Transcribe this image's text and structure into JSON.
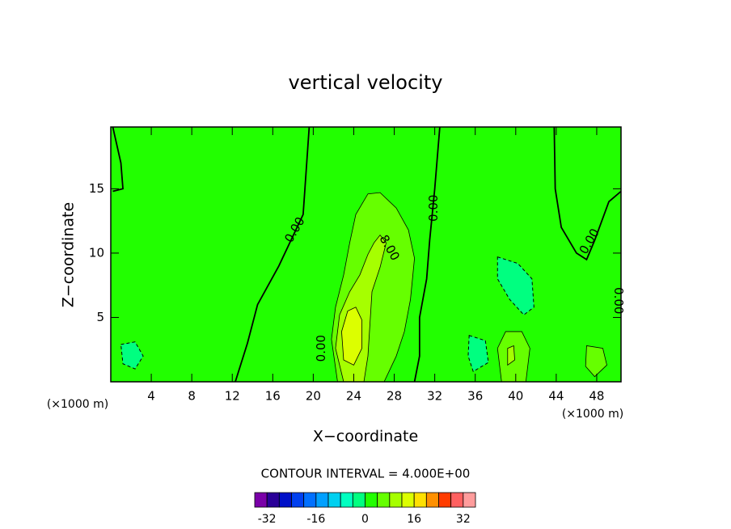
{
  "chart_data": {
    "type": "contour",
    "title": "vertical velocity",
    "xlabel": "X−coordinate",
    "ylabel": "Z−coordinate",
    "x_unit": "(×1000 m)",
    "note": "CONTOUR INTERVAL = 4.000E+00",
    "xlim": [
      0,
      50.4
    ],
    "ylim": [
      0,
      19.8
    ],
    "xticks": [
      4,
      8,
      12,
      16,
      20,
      24,
      28,
      32,
      36,
      40,
      44,
      48
    ],
    "yticks": [
      5,
      10,
      15
    ],
    "background_level": 0,
    "clim": [
      -36,
      36
    ],
    "colors": [
      "#7a00a8",
      "#2a0098",
      "#0010c8",
      "#0040f0",
      "#0070ff",
      "#00a0ff",
      "#00d0f0",
      "#00ffc0",
      "#00ff80",
      "#22ff00",
      "#66ff00",
      "#a6ff00",
      "#dcff00",
      "#ffe000",
      "#ff9000",
      "#ff3c00",
      "#ff6060",
      "#ff9c9c"
    ],
    "cticks": [
      -32,
      -16,
      0,
      16,
      32
    ],
    "regions": [
      {
        "level": 4,
        "x": [
          22.4,
          21.8,
          22.2,
          23.0,
          23.6,
          24.2,
          25.4,
          26.6,
          28.2,
          29.4,
          30.0,
          29.6,
          29.0,
          28.2,
          27.0
        ],
        "z": [
          0,
          3.3,
          5.8,
          8.3,
          10.8,
          13.0,
          14.6,
          14.7,
          13.5,
          11.8,
          9.6,
          6.4,
          3.9,
          2.0,
          0
        ]
      },
      {
        "level": 8,
        "x": [
          23.0,
          22.2,
          22.6,
          23.6,
          24.6,
          25.4,
          26.0,
          26.6,
          27.2,
          26.6,
          25.8,
          25.6,
          25.4,
          25.0
        ],
        "z": [
          0,
          2.6,
          5.2,
          7.0,
          8.3,
          9.9,
          10.8,
          11.4,
          10.8,
          8.9,
          7.0,
          4.5,
          2.0,
          0
        ]
      },
      {
        "level": 12,
        "x": [
          23.0,
          22.8,
          23.4,
          24.2,
          24.8,
          24.8,
          24.0
        ],
        "z": [
          1.7,
          3.9,
          5.5,
          5.8,
          4.8,
          2.6,
          1.3
        ]
      },
      {
        "level": -4,
        "x": [
          38.2,
          40.2,
          41.6,
          41.8,
          40.8,
          39.4,
          38.2
        ],
        "z": [
          9.7,
          9.2,
          8.0,
          5.8,
          5.2,
          6.4,
          8.0
        ]
      },
      {
        "level": -4,
        "x": [
          1.0,
          2.4,
          3.2,
          2.4,
          1.2
        ],
        "z": [
          2.9,
          3.1,
          2.0,
          1.0,
          1.4
        ]
      },
      {
        "level": -4,
        "x": [
          35.4,
          37.0,
          37.3,
          35.8,
          35.3
        ],
        "z": [
          3.6,
          3.2,
          1.5,
          0.8,
          2.0
        ]
      },
      {
        "level": 4,
        "x": [
          38.6,
          38.2,
          39.0,
          40.6,
          41.4,
          41.0
        ],
        "z": [
          0,
          2.6,
          3.9,
          3.9,
          2.6,
          0
        ]
      },
      {
        "level": 8,
        "x": [
          39.2,
          39.8,
          39.9,
          39.2
        ],
        "z": [
          2.6,
          2.8,
          1.7,
          1.3
        ]
      },
      {
        "level": 4,
        "x": [
          47.0,
          48.6,
          49.0,
          47.8,
          46.9
        ],
        "z": [
          2.8,
          2.6,
          1.3,
          0.4,
          1.2
        ]
      }
    ],
    "zero_lines": [
      {
        "x": [
          19.6,
          19.0,
          16.6,
          14.5,
          13.5,
          12.3
        ],
        "z": [
          19.8,
          13,
          9,
          6,
          3,
          0
        ]
      },
      {
        "x": [
          32.5,
          32.0,
          31.5,
          31.2,
          30.5,
          30.5,
          30.0
        ],
        "z": [
          19.8,
          15,
          11,
          8,
          5,
          2,
          0
        ]
      },
      {
        "x": [
          43.8,
          43.9,
          44.5,
          46.0,
          47.0,
          47.8,
          49.2,
          50.4
        ],
        "z": [
          19.8,
          15,
          12,
          10,
          9.5,
          11,
          14,
          14.8
        ]
      },
      {
        "x": [
          0.2,
          1.0,
          1.2,
          0.2
        ],
        "z": [
          19.8,
          17,
          15,
          14.8
        ]
      }
    ],
    "contour_labels": [
      {
        "text": "0.00",
        "x": 18.2,
        "z": 11.8
      },
      {
        "text": "0.00",
        "x": 31.9,
        "z": 13.5
      },
      {
        "text": "8.00",
        "x": 27.5,
        "z": 10.4
      },
      {
        "text": "0.00",
        "x": 20.8,
        "z": 2.6
      },
      {
        "text": "0.00",
        "x": 47.3,
        "z": 10.9
      },
      {
        "text": "0.00",
        "x": 50.1,
        "z": 6.3
      }
    ]
  }
}
